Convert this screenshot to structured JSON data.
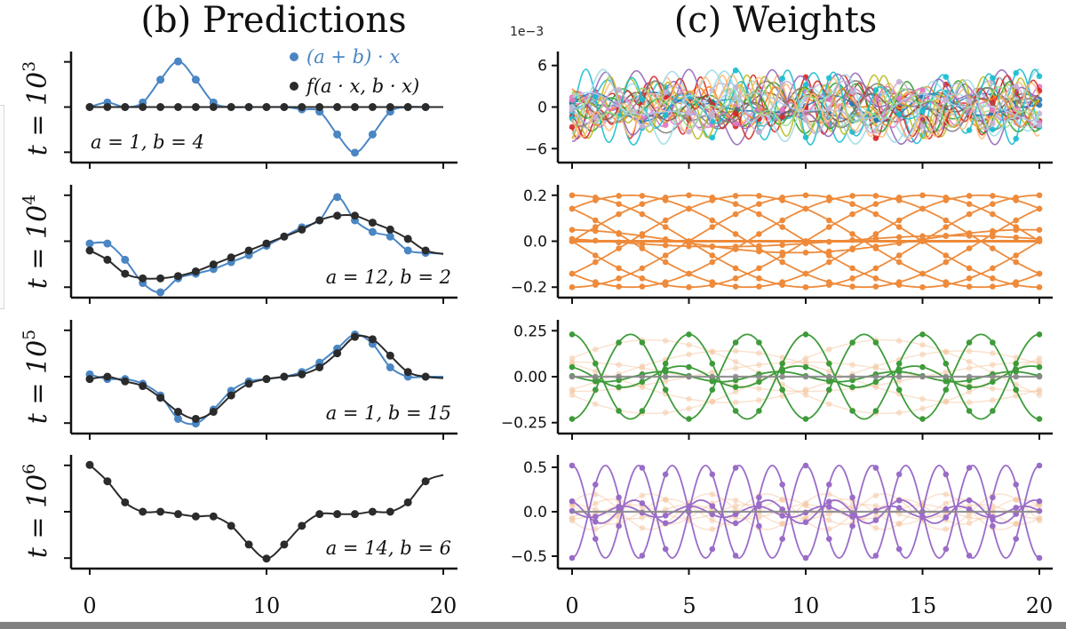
{
  "colors": {
    "blue": "#4a86c4",
    "black": "#2b2b2b",
    "orange": "#ee8a3a",
    "green": "#3e9b3a",
    "purple": "#9a6cc8",
    "fade": "#f4c9a4",
    "gray": "#8a8a8a",
    "axis": "#111111"
  },
  "titles": {
    "b": "(b) Predictions",
    "c": "(c) Weights"
  },
  "legend": {
    "blue": "(a + b) · x",
    "black": "f(a · x, b · x)"
  },
  "xticks": [
    "0",
    "5",
    "10",
    "15",
    "20"
  ],
  "chart_data": [
    {
      "type": "line",
      "panel": "predictions",
      "row_label": "t = 10",
      "row_exp": "3",
      "annotation": "a = 1,  b = 4",
      "xlim": [
        0,
        20
      ],
      "ylim": [
        -1.1,
        1.1
      ],
      "xticks": [
        "0",
        "10",
        "20"
      ],
      "series": [
        {
          "name": "(a + b) · x",
          "color": "blue",
          "x": [
            0,
            1,
            2,
            3,
            4,
            5,
            6,
            7,
            8,
            9,
            10,
            11,
            12,
            13,
            14,
            15,
            16,
            17,
            18,
            19
          ],
          "y": [
            0.0,
            0.1,
            0.0,
            0.1,
            0.6,
            1.0,
            0.6,
            0.1,
            0.0,
            0.0,
            0.0,
            0.0,
            -0.05,
            -0.1,
            -0.6,
            -1.0,
            -0.6,
            -0.1,
            0.0,
            0.0
          ]
        },
        {
          "name": "f(a · x, b · x)",
          "color": "black",
          "x": [
            0,
            1,
            2,
            3,
            4,
            5,
            6,
            7,
            8,
            9,
            10,
            11,
            12,
            13,
            14,
            15,
            16,
            17,
            18,
            19
          ],
          "y": [
            0,
            0,
            0,
            0,
            0,
            0,
            0,
            0,
            0,
            0,
            0,
            0,
            0,
            0,
            0,
            0,
            0,
            0,
            0,
            0
          ]
        }
      ]
    },
    {
      "type": "line",
      "panel": "predictions",
      "row_label": "t = 10",
      "row_exp": "4",
      "annotation": "a = 12,  b = 2",
      "xlim": [
        0,
        20
      ],
      "ylim": [
        -1.1,
        1.1
      ],
      "xticks": [
        "0",
        "10",
        "20"
      ],
      "series": [
        {
          "name": "(a + b) · x",
          "color": "blue",
          "x": [
            0,
            1,
            2,
            3,
            4,
            5,
            6,
            7,
            8,
            9,
            10,
            11,
            12,
            13,
            14,
            15,
            16,
            17,
            18,
            19
          ],
          "y": [
            -0.05,
            -0.05,
            -0.4,
            -0.9,
            -1.1,
            -0.8,
            -0.7,
            -0.6,
            -0.45,
            -0.3,
            -0.1,
            0.1,
            0.3,
            0.45,
            0.95,
            0.45,
            0.2,
            0.1,
            -0.2,
            -0.25
          ]
        },
        {
          "name": "f(a · x, b · x)",
          "color": "black",
          "x": [
            0,
            1,
            2,
            3,
            4,
            5,
            6,
            7,
            8,
            9,
            10,
            11,
            12,
            13,
            14,
            15,
            16,
            17,
            18,
            19
          ],
          "y": [
            -0.2,
            -0.4,
            -0.7,
            -0.8,
            -0.8,
            -0.75,
            -0.65,
            -0.5,
            -0.35,
            -0.2,
            -0.05,
            0.1,
            0.25,
            0.45,
            0.55,
            0.55,
            0.4,
            0.25,
            0.05,
            -0.2
          ]
        }
      ]
    },
    {
      "type": "line",
      "panel": "predictions",
      "row_label": "t = 10",
      "row_exp": "5",
      "annotation": "a = 1,  b = 15",
      "xlim": [
        0,
        20
      ],
      "ylim": [
        -1.1,
        1.1
      ],
      "xticks": [
        "0",
        "10",
        "20"
      ],
      "series": [
        {
          "name": "(a + b) · x",
          "color": "blue",
          "x": [
            0,
            1,
            2,
            3,
            4,
            5,
            6,
            7,
            8,
            9,
            10,
            11,
            12,
            13,
            14,
            15,
            16,
            17,
            18,
            19
          ],
          "y": [
            0.05,
            -0.05,
            -0.05,
            -0.15,
            -0.4,
            -0.9,
            -1.0,
            -0.7,
            -0.3,
            -0.1,
            -0.05,
            0.0,
            0.1,
            0.3,
            0.6,
            0.9,
            0.7,
            0.2,
            0.0,
            0.0
          ]
        },
        {
          "name": "f(a · x, b · x)",
          "color": "black",
          "x": [
            0,
            1,
            2,
            3,
            4,
            5,
            6,
            7,
            8,
            9,
            10,
            11,
            12,
            13,
            14,
            15,
            16,
            17,
            18,
            19
          ],
          "y": [
            -0.05,
            0.0,
            -0.1,
            -0.2,
            -0.45,
            -0.75,
            -0.9,
            -0.75,
            -0.4,
            -0.15,
            -0.05,
            0.0,
            0.05,
            0.2,
            0.5,
            0.85,
            0.8,
            0.45,
            0.1,
            0.0
          ]
        }
      ]
    },
    {
      "type": "line",
      "panel": "predictions",
      "row_label": "t = 10",
      "row_exp": "6",
      "annotation": "a = 14,  b = 6",
      "xlim": [
        0,
        20
      ],
      "ylim": [
        -1.1,
        1.1
      ],
      "xticks": [
        "0",
        "10",
        "20"
      ],
      "series": [
        {
          "name": "f(a · x, b · x)",
          "color": "black",
          "x": [
            0,
            1,
            2,
            3,
            4,
            5,
            6,
            7,
            8,
            9,
            10,
            11,
            12,
            13,
            14,
            15,
            16,
            17,
            18,
            19
          ],
          "y": [
            1.0,
            0.65,
            0.2,
            0.0,
            0.0,
            -0.05,
            -0.1,
            -0.1,
            -0.3,
            -0.7,
            -1.0,
            -0.7,
            -0.3,
            -0.05,
            -0.05,
            -0.05,
            0.0,
            0.0,
            0.2,
            0.65
          ]
        }
      ]
    },
    {
      "type": "line",
      "panel": "weights",
      "scale_label": "1e−3",
      "description": "many low-amplitude irregular weight curves",
      "xlim": [
        0,
        20
      ],
      "ylim": [
        -7.5,
        7.5
      ],
      "yticks": [
        "6",
        "0",
        "−6"
      ],
      "xticks": [
        "0",
        "5",
        "10",
        "15",
        "20"
      ],
      "series": [
        {
          "name": "weights",
          "color": "multi",
          "amplitude": 6,
          "curves": 30
        }
      ]
    },
    {
      "type": "line",
      "panel": "weights",
      "description": "sinusoid weights, period 20",
      "xlim": [
        0,
        20
      ],
      "ylim": [
        -0.23,
        0.23
      ],
      "yticks": [
        "0.2",
        "0.0",
        "−0.2"
      ],
      "xticks": [
        "0",
        "5",
        "10",
        "15",
        "20"
      ],
      "series": [
        {
          "name": "weights",
          "color": "orange",
          "amplitude": 0.2,
          "frequency_cycles": 1,
          "curves": 8
        }
      ]
    },
    {
      "type": "line",
      "panel": "weights",
      "description": "sinusoid weights, period 5",
      "xlim": [
        0,
        20
      ],
      "ylim": [
        -0.29,
        0.29
      ],
      "yticks": [
        "0.25",
        "0.00",
        "−0.25"
      ],
      "xticks": [
        "0",
        "5",
        "10",
        "15",
        "20"
      ],
      "series": [
        {
          "name": "weights",
          "color": "green",
          "amplitude": 0.23,
          "frequency_cycles": 4,
          "curves": 2
        },
        {
          "name": "faded previous",
          "color": "fade",
          "amplitude": 0.2,
          "frequency_cycles": 1,
          "curves": 6
        }
      ]
    },
    {
      "type": "line",
      "panel": "weights",
      "description": "sinusoid weights, period 20/7",
      "xlim": [
        0,
        20
      ],
      "ylim": [
        -0.6,
        0.6
      ],
      "yticks": [
        "0.5",
        "0.0",
        "−0.5"
      ],
      "xticks": [
        "0",
        "5",
        "10",
        "15",
        "20"
      ],
      "series": [
        {
          "name": "weights",
          "color": "purple",
          "amplitude": 0.52,
          "frequency_cycles": 7,
          "curves": 2
        },
        {
          "name": "faded previous",
          "color": "fade",
          "amplitude": 0.2,
          "frequency_cycles": 4,
          "curves": 6
        }
      ]
    }
  ]
}
